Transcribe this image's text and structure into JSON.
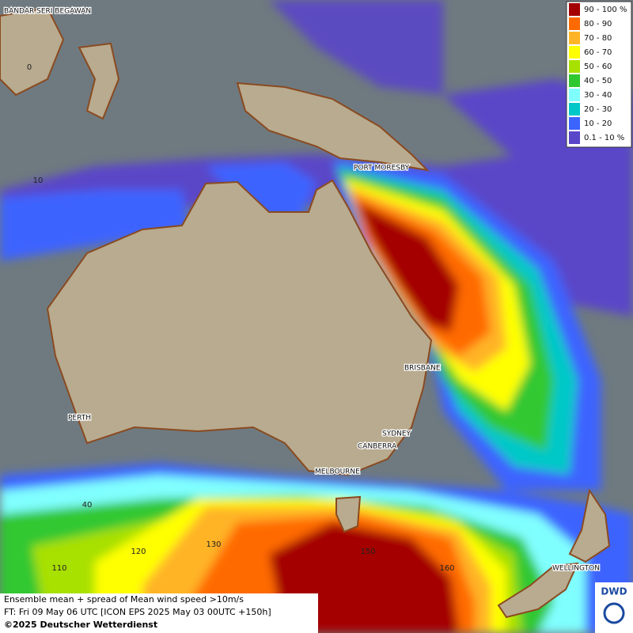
{
  "legend": {
    "items": [
      {
        "label": "90 - 100 %",
        "color": "#a40000"
      },
      {
        "label": "80 - 90",
        "color": "#ff6a00"
      },
      {
        "label": "70 - 80",
        "color": "#ffb428"
      },
      {
        "label": "60 - 70",
        "color": "#ffff00"
      },
      {
        "label": "50 - 60",
        "color": "#a8e000"
      },
      {
        "label": "40 - 50",
        "color": "#30c830"
      },
      {
        "label": "30 - 40",
        "color": "#80ffff"
      },
      {
        "label": "20 - 30",
        "color": "#00c8c8"
      },
      {
        "label": "10 - 20",
        "color": "#3c64ff"
      },
      {
        "label": "0.1 - 10 %",
        "color": "#5a46c8"
      }
    ]
  },
  "places": [
    "BANDAR SERI BEGAWAN",
    "PORT MORESBY",
    "BRISBANE",
    "PERTH",
    "SYDNEY",
    "CANBERRA",
    "MELBOURNE",
    "WELLINGTON"
  ],
  "grid_labels": [
    "0",
    "10",
    "40",
    "110",
    "120",
    "130",
    "150",
    "160"
  ],
  "footer": {
    "lines": [
      "Ensemble mean + spread of Mean wind speed >10m/s",
      "FT: Fri 09 May 06 UTC [ICON EPS 2025 May 03 00UTC +150h]",
      "©2025 Deutscher Wetterdienst"
    ]
  },
  "logo": "DWD"
}
